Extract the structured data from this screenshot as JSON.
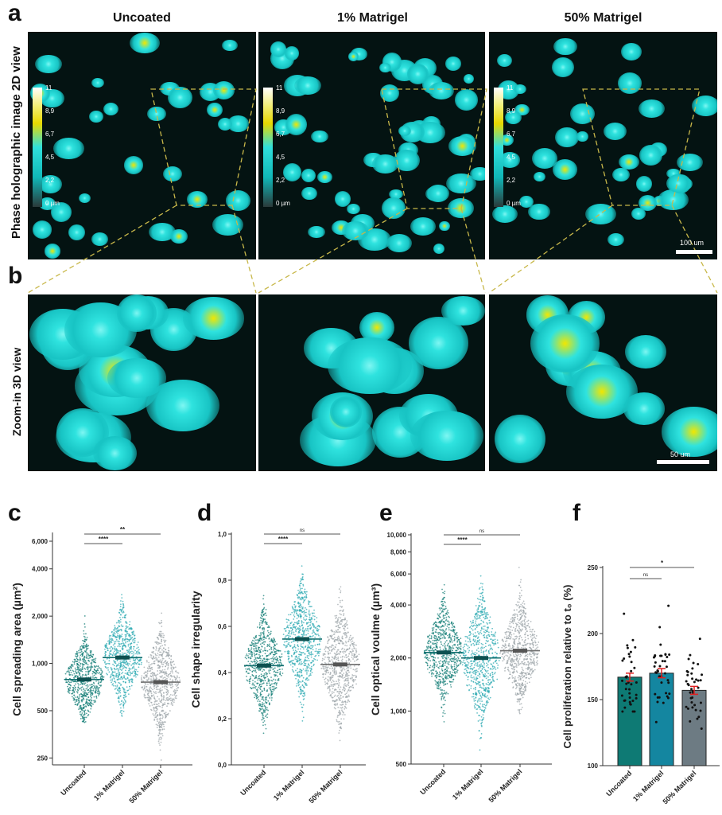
{
  "panel_labels": {
    "a": "a",
    "b": "b",
    "c": "c",
    "d": "d",
    "e": "e",
    "f": "f"
  },
  "columns": [
    "Uncoated",
    "1% Matrigel",
    "50% Matrigel"
  ],
  "row_titles": {
    "a": "Phase holographic image 2D view",
    "b": "Zoom-in 3D view"
  },
  "colorbar": {
    "ticks": [
      "11",
      "8,9",
      "6,7",
      "4,5",
      "2,2",
      "0 µm"
    ],
    "colors": [
      "#ffffff",
      "#e8d800",
      "#30e0dc",
      "#2a3a3a"
    ]
  },
  "scale_bars": {
    "a": "100 um",
    "b": "50 um"
  },
  "colors": {
    "uncoated": "#0e7a74",
    "matrigel_1": "#1486a0",
    "matrigel_50": "#6d7b83",
    "sem": "#e02020",
    "roi": "#c8b84a"
  },
  "chart_data": [
    {
      "id": "c",
      "type": "scatter",
      "ylabel": "Cell spreading area (µm²)",
      "yscale": "log",
      "ylim": [
        226,
        6000
      ],
      "yticks": [
        250,
        500,
        1000,
        2000,
        4000,
        6000
      ],
      "ytick_labels": [
        "250",
        "500",
        "1,000",
        "2,000",
        "4,000",
        "6,000"
      ],
      "categories": [
        "Uncoated",
        "1% Matrigel",
        "50% Matrigel"
      ],
      "medians": [
        790,
        1090,
        760
      ],
      "ranges": [
        [
          420,
          2800
        ],
        [
          420,
          4200
        ],
        [
          240,
          2500
        ]
      ],
      "significance": [
        {
          "from": 0,
          "to": 1,
          "label": "****"
        },
        {
          "from": 0,
          "to": 2,
          "label": "**"
        }
      ]
    },
    {
      "id": "d",
      "type": "scatter",
      "ylabel": "Cell shape irregularity",
      "yscale": "linear",
      "ylim": [
        0,
        1
      ],
      "yticks": [
        0,
        0.2,
        0.4,
        0.6,
        0.8,
        1.0
      ],
      "ytick_labels": [
        "0,0",
        "0,2",
        "0,4",
        "0,6",
        "0,8",
        "1,0"
      ],
      "categories": [
        "Uncoated",
        "1% Matrigel",
        "50% Matrigel"
      ],
      "medians": [
        0.43,
        0.545,
        0.435
      ],
      "ranges": [
        [
          0.13,
          0.84
        ],
        [
          0.16,
          0.95
        ],
        [
          0.1,
          0.9
        ]
      ],
      "significance": [
        {
          "from": 0,
          "to": 1,
          "label": "****"
        },
        {
          "from": 0,
          "to": 2,
          "label": "ns"
        }
      ]
    },
    {
      "id": "e",
      "type": "scatter",
      "ylabel": "Cell optical voulme (µm³)",
      "yscale": "log",
      "ylim": [
        500,
        10000
      ],
      "yticks": [
        500,
        1000,
        2000,
        4000,
        6000,
        8000,
        10000
      ],
      "ytick_labels": [
        "500",
        "1,000",
        "2,000",
        "4,000",
        "6,000",
        "8,000",
        "10,000"
      ],
      "categories": [
        "Uncoated",
        "1% Matrigel",
        "50% Matrigel"
      ],
      "medians": [
        2150,
        2000,
        2200
      ],
      "ranges": [
        [
          830,
          6500
        ],
        [
          520,
          7800
        ],
        [
          850,
          7800
        ]
      ],
      "significance": [
        {
          "from": 0,
          "to": 1,
          "label": "****"
        },
        {
          "from": 0,
          "to": 2,
          "label": "ns"
        }
      ]
    },
    {
      "id": "f",
      "type": "bar",
      "ylabel": "Cell proliferation relative to t₀ (%)",
      "yscale": "linear",
      "ylim": [
        100,
        250
      ],
      "yticks": [
        100,
        150,
        200,
        250
      ],
      "ytick_labels": [
        "100",
        "150",
        "200",
        "250"
      ],
      "categories": [
        "Uncoated",
        "1% Matrigel",
        "50% Matrigel"
      ],
      "values": [
        167,
        170,
        157
      ],
      "sem": [
        3,
        3.5,
        3
      ],
      "ranges": [
        [
          141,
          215
        ],
        [
          133,
          221
        ],
        [
          128,
          196
        ]
      ],
      "significance": [
        {
          "from": 0,
          "to": 1,
          "label": "ns"
        },
        {
          "from": 0,
          "to": 2,
          "label": "*"
        }
      ]
    }
  ]
}
